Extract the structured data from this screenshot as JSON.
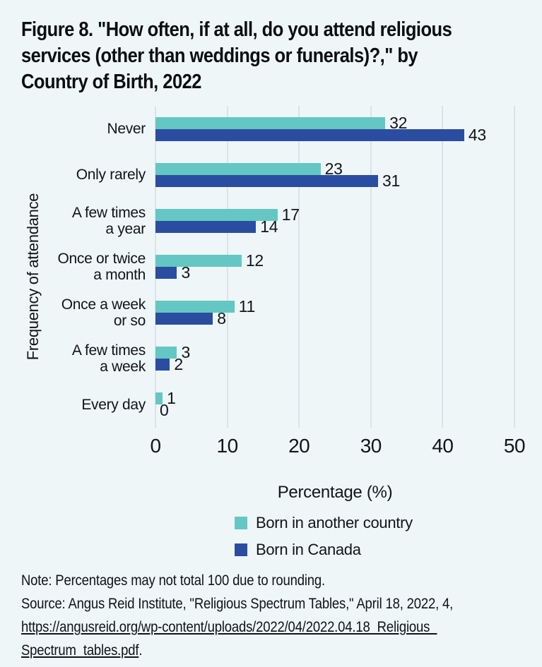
{
  "page": {
    "background": "#eef6f8"
  },
  "header": {
    "title_lines": [
      "Figure 8. \"How often, if at all, do you attend religious",
      "services (other than weddings or funerals)?,\" by",
      "Country of Birth, 2022"
    ]
  },
  "chart_data": {
    "type": "bar",
    "orientation": "horizontal",
    "title": "Figure 8. \"How often, if at all, do you attend religious services (other than weddings or funerals)?,\" by Country of Birth, 2022",
    "categories": [
      "Never",
      "Only rarely",
      "A few times a year",
      "Once or twice a month",
      "Once a week or so",
      "A few times a week",
      "Every day"
    ],
    "category_label_lines": [
      [
        "Never"
      ],
      [
        "Only rarely"
      ],
      [
        "A few times",
        "a year"
      ],
      [
        "Once or twice",
        "a month"
      ],
      [
        "Once a week",
        "or so"
      ],
      [
        "A few times",
        "a week"
      ],
      [
        "Every day"
      ]
    ],
    "series": [
      {
        "name": "Born in another country",
        "color": "#64c7c3",
        "values": [
          32,
          23,
          17,
          12,
          11,
          3,
          1
        ]
      },
      {
        "name": "Born in Canada",
        "color": "#2b4da1",
        "values": [
          43,
          31,
          14,
          3,
          8,
          2,
          0
        ]
      }
    ],
    "xlabel": "Percentage (%)",
    "ylabel": "Frequency of attendance",
    "xlim": [
      0,
      50
    ],
    "xticks": [
      0,
      10,
      20,
      30,
      40,
      50
    ],
    "grid": true,
    "gridline_color": "#dce3e6",
    "legend_position": "bottom-center"
  },
  "footnote": {
    "note": "Note: Percentages may not total 100 due to rounding.",
    "source": "Source: Angus Reid Institute, \"Religious Spectrum Tables,\" April 18, 2022, 4,",
    "link_line1": "https://angusreid.org/wp-content/uploads/2022/04/2022.04.18_Religious_",
    "link_line2": "Spectrum_tables.pdf",
    "period": "."
  }
}
